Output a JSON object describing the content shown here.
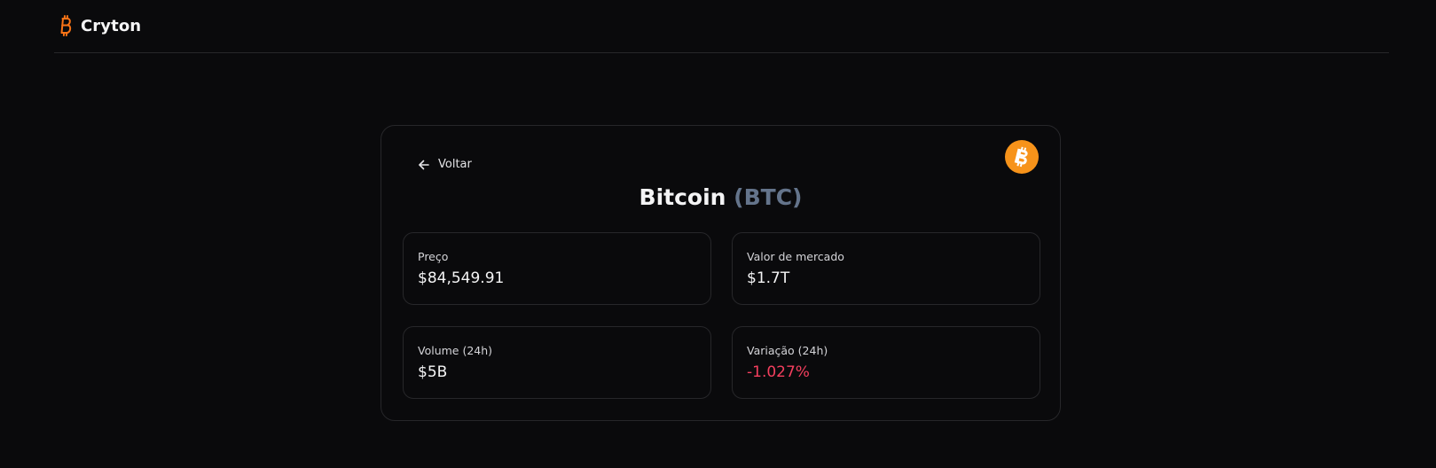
{
  "app": {
    "name": "Cryton",
    "logo_icon": "bitcoin-icon",
    "accent_color": "#f97316"
  },
  "back": {
    "label": "Voltar",
    "icon": "arrow-left-icon"
  },
  "coin": {
    "name": "Bitcoin",
    "symbol": "(BTC)",
    "logo_icon": "bitcoin-coin-icon",
    "logo_color": "#f7931a"
  },
  "stats": {
    "price": {
      "label": "Preço",
      "value": "$84,549.91"
    },
    "market_cap": {
      "label": "Valor de mercado",
      "value": "$1.7T"
    },
    "volume": {
      "label": "Volume (24h)",
      "value": "$5B"
    },
    "change": {
      "label": "Variação (24h)",
      "value": "-1.027%",
      "color": "#f43f5e"
    }
  }
}
